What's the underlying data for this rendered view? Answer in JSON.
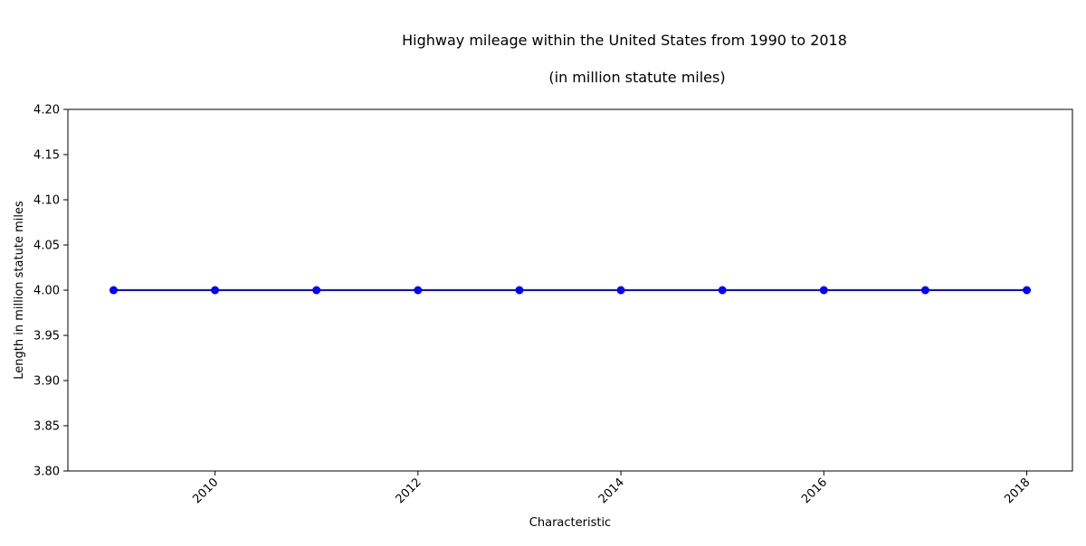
{
  "chart_data": {
    "type": "line",
    "title": "Highway mileage within the United States from 1990 to 2018",
    "subtitle": "(in million statute miles)",
    "xlabel": "Characteristic",
    "ylabel": "Length in million statute miles",
    "x": [
      2009,
      2010,
      2011,
      2012,
      2013,
      2014,
      2015,
      2016,
      2017,
      2018
    ],
    "series": [
      {
        "values": [
          4.0,
          4.0,
          4.0,
          4.0,
          4.0,
          4.0,
          4.0,
          4.0,
          4.0,
          4.0
        ],
        "color": "#0000ff",
        "marker": "circle"
      }
    ],
    "xlim": [
      2008.55,
      2018.45
    ],
    "ylim": [
      3.8,
      4.2
    ],
    "x_ticks": [
      "2010",
      "2012",
      "2014",
      "2016",
      "2018"
    ],
    "y_ticks": [
      "3.80",
      "3.85",
      "3.90",
      "3.95",
      "4.00",
      "4.05",
      "4.10",
      "4.15",
      "4.20"
    ],
    "grid": false,
    "legend": "none"
  }
}
